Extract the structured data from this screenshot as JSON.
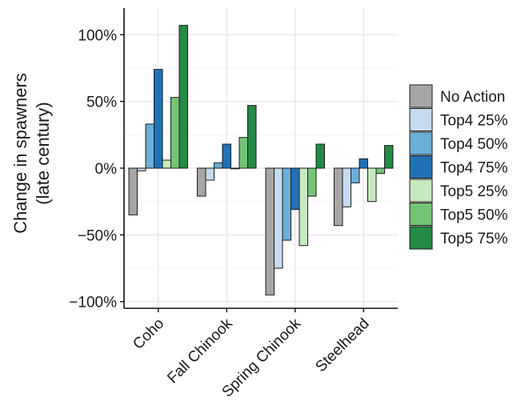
{
  "chart_data": {
    "type": "bar",
    "title": "",
    "xlabel": "",
    "ylabel": [
      "Change in spawners",
      "(late century)"
    ],
    "categories": [
      "Coho",
      "Fall Chinook",
      "Spring Chinook",
      "Steelhead"
    ],
    "ylim": [
      -105,
      120
    ],
    "yticks": [
      -100,
      -50,
      0,
      50,
      100
    ],
    "ytick_labels": [
      "−100%",
      "−50%",
      "0%",
      "50%",
      "100%"
    ],
    "grid": true,
    "legend_position": "right",
    "series": [
      {
        "name": "No Action",
        "color": "#a6a6a6",
        "values": [
          -35,
          -21,
          -95,
          -43
        ]
      },
      {
        "name": "Top4 25%",
        "color": "#c6dbef",
        "values": [
          -2,
          -9,
          -75,
          -29
        ]
      },
      {
        "name": "Top4 50%",
        "color": "#6baed6",
        "values": [
          33,
          4,
          -54,
          -11
        ]
      },
      {
        "name": "Top4 75%",
        "color": "#2171b5",
        "values": [
          74,
          18,
          -31,
          7
        ]
      },
      {
        "name": "Top5 25%",
        "color": "#c7e9c0",
        "values": [
          6,
          0,
          -58,
          -25
        ]
      },
      {
        "name": "Top5 50%",
        "color": "#74c476",
        "values": [
          53,
          23,
          -21,
          -4
        ]
      },
      {
        "name": "Top5 75%",
        "color": "#238b45",
        "values": [
          107,
          47,
          18,
          17
        ]
      }
    ]
  }
}
